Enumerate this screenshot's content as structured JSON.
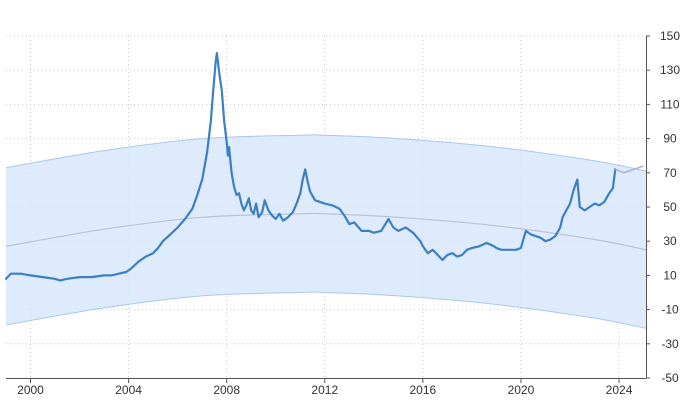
{
  "chart_data": {
    "type": "line",
    "title": "",
    "xlabel": "",
    "ylabel": "",
    "xlim": [
      1999.0,
      2025.1
    ],
    "ylim": [
      -50,
      150
    ],
    "x_ticks": [
      2000,
      2004,
      2008,
      2012,
      2016,
      2020,
      2024
    ],
    "x_tick_labels": [
      "2000",
      "2004",
      "2008",
      "2012",
      "2016",
      "2020",
      "2024"
    ],
    "y_ticks": [
      150,
      130,
      110,
      90,
      70,
      50,
      30,
      10,
      -10,
      -30,
      -50
    ],
    "y_tick_labels": [
      "150",
      "130",
      "110",
      "90",
      "70",
      "50",
      "30",
      "10",
      "-10",
      "-30",
      "-50"
    ],
    "grid": true,
    "y_axis_side": "right",
    "colors": {
      "series": "#3d7fc1",
      "band_fill": "#d8e8fb",
      "band_edge": "#a9c8ee",
      "trend": "#b8c4d4",
      "forecast": "#a9b8cc",
      "grid": "#c8c8c8",
      "axis": "#555555"
    },
    "series": [
      {
        "role": "price",
        "x": [
          1999.0,
          1999.2,
          1999.6,
          2000.0,
          2000.5,
          2001.0,
          2001.2,
          2001.5,
          2002.0,
          2002.5,
          2003.0,
          2003.3,
          2003.6,
          2003.9,
          2004.1,
          2004.4,
          2004.7,
          2005.0,
          2005.2,
          2005.4,
          2005.7,
          2006.0,
          2006.3,
          2006.6,
          2006.8,
          2007.0,
          2007.2,
          2007.35,
          2007.45,
          2007.55,
          2007.6,
          2007.7,
          2007.8,
          2007.9,
          2008.0,
          2008.05,
          2008.1,
          2008.15,
          2008.2,
          2008.3,
          2008.4,
          2008.5,
          2008.6,
          2008.7,
          2008.8,
          2008.9,
          2009.0,
          2009.1,
          2009.2,
          2009.3,
          2009.45,
          2009.55,
          2009.7,
          2009.85,
          2010.0,
          2010.15,
          2010.3,
          2010.5,
          2010.7,
          2010.85,
          2011.0,
          2011.1,
          2011.2,
          2011.3,
          2011.4,
          2011.6,
          2011.8,
          2012.0,
          2012.3,
          2012.6,
          2012.8,
          2013.0,
          2013.2,
          2013.5,
          2013.8,
          2014.0,
          2014.3,
          2014.6,
          2014.8,
          2015.0,
          2015.3,
          2015.6,
          2015.9,
          2016.0,
          2016.2,
          2016.4,
          2016.6,
          2016.8,
          2017.0,
          2017.2,
          2017.4,
          2017.6,
          2017.8,
          2018.0,
          2018.3,
          2018.6,
          2018.9,
          2019.0,
          2019.2,
          2019.5,
          2019.8,
          2020.0,
          2020.2,
          2020.4,
          2020.6,
          2020.8,
          2021.0,
          2021.2,
          2021.4,
          2021.6,
          2021.7,
          2021.85,
          2022.0,
          2022.15,
          2022.3,
          2022.4,
          2022.6,
          2022.8,
          2023.0,
          2023.2,
          2023.4,
          2023.6,
          2023.75,
          2023.85
        ],
        "y": [
          8,
          11,
          11,
          10,
          9,
          8,
          7,
          8,
          9,
          9,
          10,
          10,
          11,
          12,
          14,
          18,
          21,
          23,
          26,
          30,
          34,
          38,
          43,
          49,
          57,
          66,
          82,
          100,
          118,
          135,
          140,
          128,
          118,
          100,
          88,
          80,
          85,
          77,
          70,
          62,
          57,
          58,
          52,
          48,
          51,
          55,
          48,
          46,
          52,
          44,
          47,
          54,
          48,
          45,
          43,
          46,
          42,
          44,
          47,
          52,
          58,
          66,
          72,
          65,
          59,
          54,
          53,
          52,
          51,
          49,
          45,
          40,
          41,
          36,
          36,
          35,
          36,
          43,
          38,
          36,
          38,
          35,
          30,
          27,
          23,
          25,
          22,
          19,
          22,
          23,
          21,
          22,
          25,
          26,
          27,
          29,
          27,
          26,
          25,
          25,
          25,
          26,
          36,
          34,
          33,
          32,
          30,
          31,
          33,
          38,
          44,
          48,
          52,
          60,
          66,
          50,
          48,
          50,
          52,
          51,
          53,
          58,
          61,
          72
        ]
      },
      {
        "role": "forecast",
        "x": [
          2023.85,
          2024.2,
          2024.6,
          2025.0
        ],
        "y": [
          72,
          70,
          72,
          74
        ]
      },
      {
        "role": "trend_center",
        "x": [
          1999.0,
          2003.0,
          2007.0,
          2011.0,
          2012.0,
          2015.0,
          2019.0,
          2023.0,
          2025.1
        ],
        "y": [
          27,
          37,
          44,
          46,
          46,
          44,
          39,
          31,
          25
        ]
      },
      {
        "role": "band_upper",
        "x": [
          1999.0,
          2003.0,
          2007.0,
          2011.0,
          2012.0,
          2015.0,
          2019.0,
          2023.0,
          2025.1
        ],
        "y": [
          73,
          83,
          90,
          92,
          92,
          90,
          85,
          77,
          71
        ]
      },
      {
        "role": "band_lower",
        "x": [
          1999.0,
          2003.0,
          2007.0,
          2011.0,
          2012.0,
          2015.0,
          2019.0,
          2023.0,
          2025.1
        ],
        "y": [
          -19,
          -9,
          -2,
          0,
          0,
          -2,
          -7,
          -15,
          -21
        ]
      }
    ]
  }
}
